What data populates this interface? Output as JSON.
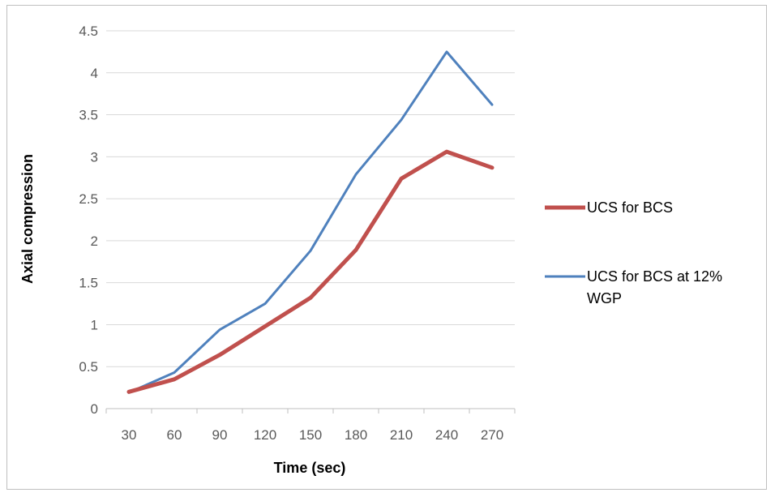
{
  "chart_data": {
    "type": "line",
    "xlabel": "Time (sec)",
    "ylabel": "Axial compression",
    "ylim": [
      0,
      4.5
    ],
    "yticks": [
      "0",
      "0.5",
      "1",
      "1.5",
      "2",
      "2.5",
      "3",
      "3.5",
      "4",
      "4.5"
    ],
    "categories": [
      "30",
      "60",
      "90",
      "120",
      "150",
      "180",
      "210",
      "240",
      "270"
    ],
    "grid": true,
    "legend_position": "right",
    "series": [
      {
        "name": "UCS for BCS",
        "color": "#c0504d",
        "values": [
          0.2,
          0.35,
          0.64,
          0.98,
          1.32,
          1.89,
          2.74,
          3.06,
          2.87
        ]
      },
      {
        "name_lines": [
          "UCS for BCS at 12%",
          "WGP"
        ],
        "color": "#4f81bd",
        "values": [
          0.19,
          0.43,
          0.94,
          1.25,
          1.88,
          2.79,
          3.44,
          4.25,
          3.62
        ]
      }
    ]
  }
}
